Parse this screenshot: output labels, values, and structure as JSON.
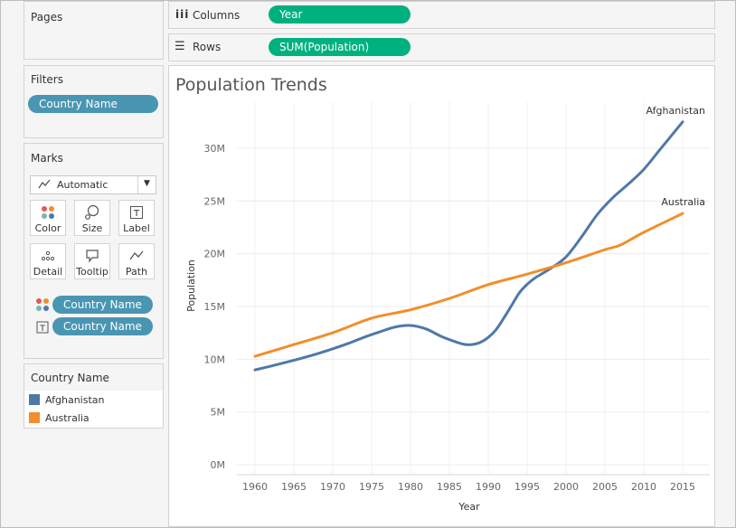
{
  "shelves": {
    "pages_label": "Pages",
    "columns_label": "Columns",
    "columns_pill": "Year",
    "rows_label": "Rows",
    "rows_pill": "SUM(Population)"
  },
  "filters": {
    "title": "Filters",
    "pill": "Country Name"
  },
  "marks": {
    "title": "Marks",
    "mark_type": "Automatic",
    "buttons": [
      "Color",
      "Size",
      "Label",
      "Detail",
      "Tooltip",
      "Path"
    ],
    "color_pill": "Country Name",
    "label_pill": "Country Name"
  },
  "legend": {
    "title": "Country Name",
    "items": [
      {
        "label": "Afghanistan",
        "color": "#4e79a7"
      },
      {
        "label": "Australia",
        "color": "#f28e2b"
      }
    ]
  },
  "chart_data": {
    "type": "line",
    "title": "Population Trends",
    "xlabel": "Year",
    "ylabel": "Population",
    "x_ticks": [
      1960,
      1965,
      1970,
      1975,
      1980,
      1985,
      1990,
      1995,
      2000,
      2005,
      2010,
      2015
    ],
    "y_ticks": [
      "0M",
      "5M",
      "10M",
      "15M",
      "20M",
      "25M",
      "30M"
    ],
    "xlim": [
      1956,
      2018
    ],
    "ylim": [
      0,
      33500000
    ],
    "grid": true,
    "series": [
      {
        "name": "Afghanistan",
        "color": "#4e79a7",
        "x": [
          1960,
          1962,
          1964,
          1966,
          1968,
          1970,
          1972,
          1974,
          1976,
          1978,
          1980,
          1982,
          1984,
          1986,
          1987,
          1988,
          1989,
          1990,
          1991,
          1992,
          1993,
          1994,
          1995,
          1996,
          1998,
          2000,
          2002,
          2004,
          2006,
          2008,
          2010,
          2012,
          2014,
          2015
        ],
        "y": [
          8990000,
          9340000,
          9710000,
          10100000,
          10520000,
          10990000,
          11500000,
          12070000,
          12580000,
          13050000,
          13200000,
          12870000,
          12150000,
          11600000,
          11400000,
          11400000,
          11600000,
          12070000,
          12800000,
          13900000,
          15100000,
          16300000,
          17100000,
          17700000,
          18600000,
          19700000,
          21600000,
          23700000,
          25300000,
          26600000,
          28000000,
          29800000,
          31600000,
          32500000
        ]
      },
      {
        "name": "Australia",
        "color": "#f28e2b",
        "x": [
          1960,
          1965,
          1970,
          1975,
          1980,
          1985,
          1990,
          1995,
          2000,
          2005,
          2007,
          2010,
          2015
        ],
        "y": [
          10280000,
          11390000,
          12510000,
          13890000,
          14690000,
          15760000,
          17070000,
          18070000,
          19150000,
          20390000,
          20830000,
          22030000,
          23820000
        ]
      }
    ],
    "annotations": [
      "Afghanistan",
      "Australia"
    ]
  }
}
